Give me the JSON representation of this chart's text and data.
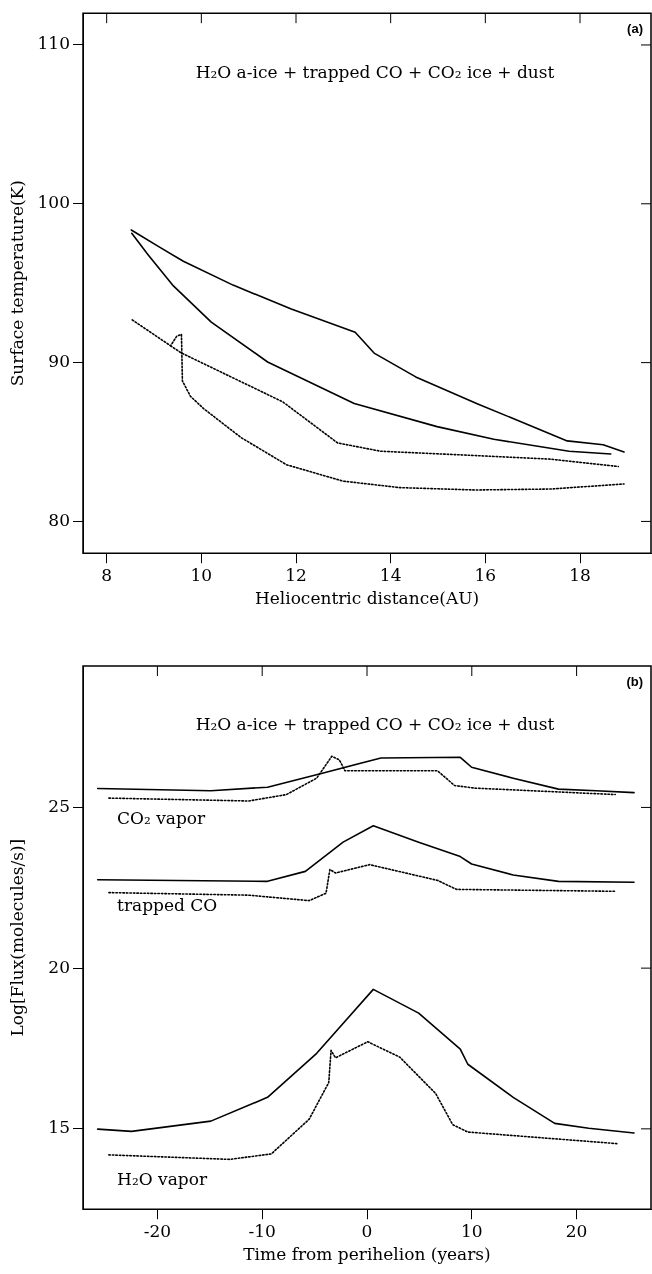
{
  "chart_data": [
    {
      "type": "line",
      "title": "H₂O a-ice + trapped CO + CO₂ ice + dust",
      "xlabel": "Heliocentric distance(AU)",
      "ylabel": "Surface temperature(K)",
      "xlim": [
        7.5,
        19.5
      ],
      "ylim": [
        78,
        112
      ],
      "xticks": [
        8,
        10,
        12,
        14,
        16,
        18
      ],
      "yticks": [
        80,
        90,
        100,
        110
      ],
      "grid": false,
      "legend": false,
      "marker": "none",
      "annotations": [
        "(a)"
      ],
      "series": [
        {
          "color": "#000000",
          "line_style": "solid",
          "x": [
            8.52,
            9.1,
            9.62,
            10.67,
            11.9,
            13.25,
            13.65,
            14.53,
            15.84,
            17.73,
            18.49,
            18.93
          ],
          "values": [
            98.35,
            97.3,
            96.38,
            94.88,
            93.37,
            91.91,
            90.6,
            89.1,
            87.4,
            85.07,
            84.83,
            84.37
          ]
        },
        {
          "color": "#000000",
          "line_style": "solid",
          "x": [
            8.53,
            8.85,
            9.41,
            10.21,
            11.4,
            13.23,
            14.98,
            16.18,
            17.77,
            18.65
          ],
          "values": [
            98.14,
            96.88,
            94.83,
            92.55,
            90.04,
            87.42,
            85.97,
            85.17,
            84.42,
            84.25
          ]
        },
        {
          "color": "#000000",
          "line_style": "dotted",
          "x": [
            8.54,
            9.35,
            9.48,
            9.58,
            9.6,
            9.77,
            10.05,
            10.84,
            11.8,
            12.99,
            14.19,
            15.78,
            17.38,
            18.93
          ],
          "values": [
            92.69,
            91.06,
            91.66,
            91.78,
            88.85,
            87.88,
            87.1,
            85.28,
            83.57,
            82.54,
            82.13,
            81.98,
            82.04,
            82.36
          ]
        },
        {
          "color": "#000000",
          "line_style": "dotted",
          "x": [
            9.35,
            9.57,
            11.56,
            11.72,
            12.84,
            12.88,
            13.79,
            15.78,
            17.38,
            18.81
          ],
          "values": [
            91.06,
            90.62,
            87.76,
            87.53,
            85.03,
            84.94,
            84.42,
            84.15,
            83.92,
            83.46
          ]
        }
      ]
    },
    {
      "type": "line",
      "title": "H₂O a-ice + trapped CO + CO₂ ice + dust",
      "xlabel": "Time from perihelion (years)",
      "ylabel": "Log[Flux(molecules/s)]",
      "xlim": [
        -27.1,
        27.1
      ],
      "ylim": [
        12.5,
        29.4
      ],
      "xticks": [
        -20,
        -10,
        0,
        10,
        20
      ],
      "yticks": [
        15,
        20,
        25
      ],
      "grid": false,
      "legend": false,
      "marker": "none",
      "annotations": [
        "(b)",
        "CO₂ vapor",
        "trapped CO",
        "H₂O vapor"
      ],
      "series": [
        {
          "color": "#000000",
          "line_style": "solid",
          "x": [
            -25.7,
            -14.9,
            -9.49,
            -4.08,
            1.33,
            8.9,
            9.98,
            13.95,
            18.27,
            21.87,
            25.48
          ],
          "values": [
            25.59,
            25.52,
            25.63,
            26.08,
            26.54,
            26.56,
            26.25,
            25.91,
            25.57,
            25.52,
            25.46
          ]
        },
        {
          "color": "#000000",
          "line_style": "dotted",
          "x": [
            -24.63,
            -11.29,
            -7.69,
            -4.8,
            -3.36,
            -2.64,
            -2.1,
            6.73,
            8.36,
            10.33,
            23.69
          ],
          "values": [
            25.29,
            25.2,
            25.4,
            25.91,
            26.59,
            26.48,
            26.14,
            26.14,
            25.68,
            25.6,
            25.4
          ]
        },
        {
          "color": "#000000",
          "line_style": "solid",
          "x": [
            -25.7,
            -9.49,
            -5.88,
            -2.28,
            0.6,
            4.93,
            8.9,
            9.98,
            13.95,
            18.27,
            25.48
          ],
          "values": [
            22.75,
            22.7,
            23.01,
            23.92,
            24.43,
            23.92,
            23.47,
            23.24,
            22.9,
            22.7,
            22.67
          ]
        },
        {
          "color": "#000000",
          "line_style": "dotted",
          "x": [
            -24.63,
            -11.29,
            -5.52,
            -3.91,
            -3.54,
            -3.0,
            0.25,
            6.73,
            8.54,
            23.69
          ],
          "values": [
            22.35,
            22.27,
            22.1,
            22.33,
            23.07,
            22.96,
            23.22,
            22.73,
            22.45,
            22.39
          ]
        },
        {
          "color": "#000000",
          "line_style": "solid",
          "x": [
            -25.7,
            -22.47,
            -14.9,
            -9.49,
            -4.8,
            0.6,
            4.93,
            8.9,
            9.62,
            13.95,
            17.91,
            21.16,
            25.48
          ],
          "values": [
            14.99,
            14.92,
            15.24,
            15.98,
            17.35,
            19.34,
            18.6,
            17.48,
            17.01,
            15.98,
            15.17,
            15.02,
            14.87
          ]
        },
        {
          "color": "#000000",
          "line_style": "dotted",
          "x": [
            -24.63,
            -13.1,
            -9.13,
            -5.52,
            -3.65,
            -3.43,
            -3.0,
            0.07,
            3.13,
            6.55,
            8.18,
            9.62,
            23.87
          ],
          "values": [
            14.19,
            14.05,
            14.22,
            15.3,
            16.44,
            17.44,
            17.21,
            17.71,
            17.23,
            16.1,
            15.13,
            14.9,
            14.54
          ]
        }
      ]
    }
  ]
}
